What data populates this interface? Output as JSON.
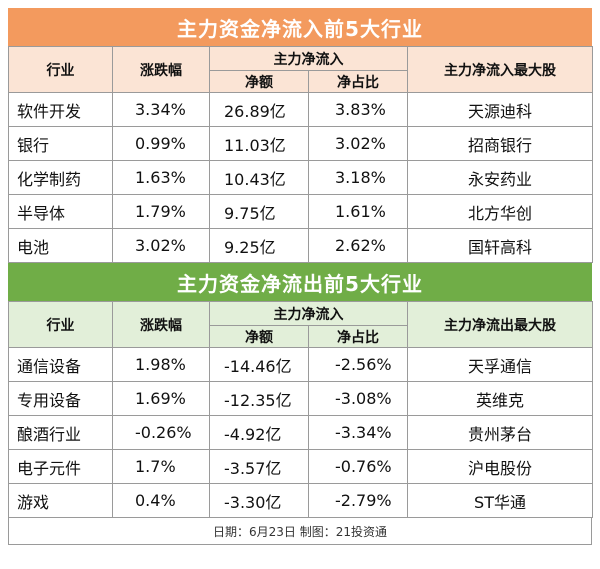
{
  "inflow": {
    "title": "主力资金净流入前5大行业",
    "headers": {
      "industry": "行业",
      "change": "涨跌幅",
      "main_net": "主力净流入",
      "net_amount": "净额",
      "net_ratio": "净占比",
      "top_stock": "主力净流入最大股"
    },
    "rows": [
      {
        "industry": "软件开发",
        "change": "3.34%",
        "amount": "26.89亿",
        "ratio": "3.83%",
        "stock": "天源迪科"
      },
      {
        "industry": "银行",
        "change": "0.99%",
        "amount": "11.03亿",
        "ratio": "3.02%",
        "stock": "招商银行"
      },
      {
        "industry": "化学制药",
        "change": "1.63%",
        "amount": "10.43亿",
        "ratio": "3.18%",
        "stock": "永安药业"
      },
      {
        "industry": "半导体",
        "change": "1.79%",
        "amount": "9.75亿",
        "ratio": "1.61%",
        "stock": "北方华创"
      },
      {
        "industry": "电池",
        "change": "3.02%",
        "amount": "9.25亿",
        "ratio": "2.62%",
        "stock": "国轩高科"
      }
    ]
  },
  "outflow": {
    "title": "主力资金净流出前5大行业",
    "headers": {
      "industry": "行业",
      "change": "涨跌幅",
      "main_net": "主力净流入",
      "net_amount": "净额",
      "net_ratio": "净占比",
      "top_stock": "主力净流出最大股"
    },
    "rows": [
      {
        "industry": "通信设备",
        "change": "1.98%",
        "amount": "-14.46亿",
        "ratio": "-2.56%",
        "stock": "天孚通信"
      },
      {
        "industry": "专用设备",
        "change": "1.69%",
        "amount": "-12.35亿",
        "ratio": "-3.08%",
        "stock": "英维克"
      },
      {
        "industry": "酿酒行业",
        "change": "-0.26%",
        "amount": "-4.92亿",
        "ratio": "-3.34%",
        "stock": "贵州茅台"
      },
      {
        "industry": "电子元件",
        "change": "1.7%",
        "amount": "-3.57亿",
        "ratio": "-0.76%",
        "stock": "沪电股份"
      },
      {
        "industry": "游戏",
        "change": "0.4%",
        "amount": "-3.30亿",
        "ratio": "-2.79%",
        "stock": "ST华通"
      }
    ]
  },
  "footer": "日期：6月23日  制图：21投资通",
  "colors": {
    "inflow_banner": "#f39a5e",
    "inflow_header": "#fbe4d5",
    "outflow_banner": "#70ad47",
    "outflow_header": "#e2efd9"
  }
}
